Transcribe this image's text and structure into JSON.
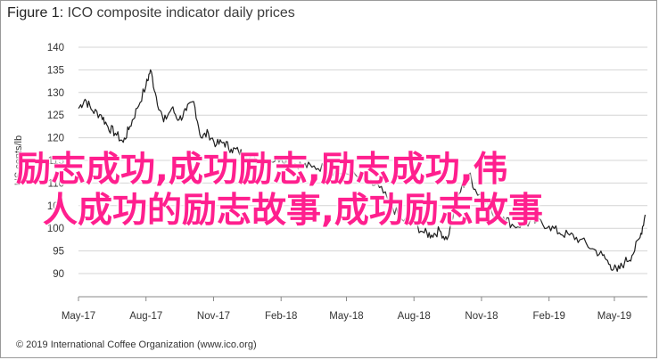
{
  "figure": {
    "title_prefix": "Figure 1:",
    "title_text": "ICO composite indicator daily prices",
    "footer": "© 2019 International Coffee Organization (www.ico.org)"
  },
  "overlay_text": {
    "line1": "励志成功,成功励志,励志成功,伟",
    "line2": "人成功的励志故事,成功励志故事"
  },
  "colors": {
    "line": "#1f1f1f",
    "gridline": "#d4d4d4",
    "overlay": "#ff1f8e"
  },
  "chart_data": {
    "type": "line",
    "title": "ICO composite indicator daily prices",
    "ylabel": "US cents/lb",
    "xlabel": "",
    "ylim": [
      90,
      140
    ],
    "yticks": [
      90,
      95,
      100,
      105,
      110,
      115,
      120,
      125,
      130,
      135,
      140
    ],
    "xlim": [
      "2017-05-01",
      "2019-06-15"
    ],
    "xticks": [
      "May-17",
      "Aug-17",
      "Nov-17",
      "Feb-18",
      "May-18",
      "Aug-18",
      "Nov-18",
      "Feb-19",
      "May-19"
    ],
    "grid": "horizontal",
    "series": [
      {
        "values_by_month_approx": [
          [
            "2017-05-01",
            126.5
          ],
          [
            "2017-05-10",
            128.5
          ],
          [
            "2017-05-20",
            126.0
          ],
          [
            "2017-06-01",
            125.0
          ],
          [
            "2017-06-10",
            122.5
          ],
          [
            "2017-06-20",
            121.0
          ],
          [
            "2017-07-01",
            119.0
          ],
          [
            "2017-07-10",
            122.5
          ],
          [
            "2017-07-20",
            126.5
          ],
          [
            "2017-08-01",
            131.5
          ],
          [
            "2017-08-07",
            135.0
          ],
          [
            "2017-08-15",
            129.0
          ],
          [
            "2017-08-25",
            123.5
          ],
          [
            "2017-09-05",
            126.5
          ],
          [
            "2017-09-15",
            124.0
          ],
          [
            "2017-09-25",
            126.0
          ],
          [
            "2017-10-05",
            128.0
          ],
          [
            "2017-10-15",
            120.0
          ],
          [
            "2017-10-25",
            121.0
          ],
          [
            "2017-11-05",
            118.5
          ],
          [
            "2017-11-15",
            119.0
          ],
          [
            "2017-11-25",
            117.5
          ],
          [
            "2017-12-05",
            117.0
          ],
          [
            "2017-12-15",
            116.0
          ],
          [
            "2018-01-01",
            115.0
          ],
          [
            "2018-01-15",
            115.0
          ],
          [
            "2018-02-01",
            115.5
          ],
          [
            "2018-02-15",
            114.5
          ],
          [
            "2018-03-01",
            114.0
          ],
          [
            "2018-03-15",
            113.5
          ],
          [
            "2018-04-01",
            113.5
          ],
          [
            "2018-04-15",
            112.5
          ],
          [
            "2018-05-01",
            112.0
          ],
          [
            "2018-05-15",
            111.5
          ],
          [
            "2018-06-01",
            110.0
          ],
          [
            "2018-06-15",
            109.0
          ],
          [
            "2018-07-01",
            105.0
          ],
          [
            "2018-07-15",
            102.0
          ],
          [
            "2018-08-01",
            101.0
          ],
          [
            "2018-08-15",
            99.0
          ],
          [
            "2018-08-25",
            98.5
          ],
          [
            "2018-09-05",
            99.5
          ],
          [
            "2018-09-15",
            97.5
          ],
          [
            "2018-10-01",
            107.5
          ],
          [
            "2018-10-15",
            112.0
          ],
          [
            "2018-10-25",
            108.0
          ],
          [
            "2018-11-05",
            107.0
          ],
          [
            "2018-11-15",
            103.5
          ],
          [
            "2018-12-01",
            102.5
          ],
          [
            "2018-12-15",
            100.5
          ],
          [
            "2019-01-01",
            101.0
          ],
          [
            "2019-01-15",
            101.5
          ],
          [
            "2019-02-01",
            100.5
          ],
          [
            "2019-02-15",
            99.0
          ],
          [
            "2019-03-01",
            98.5
          ],
          [
            "2019-03-15",
            97.5
          ],
          [
            "2019-04-01",
            95.5
          ],
          [
            "2019-04-15",
            94.0
          ],
          [
            "2019-04-25",
            92.0
          ],
          [
            "2019-05-05",
            90.5
          ],
          [
            "2019-05-15",
            92.5
          ],
          [
            "2019-05-25",
            94.0
          ],
          [
            "2019-06-05",
            98.0
          ],
          [
            "2019-06-12",
            103.0
          ]
        ]
      }
    ]
  }
}
